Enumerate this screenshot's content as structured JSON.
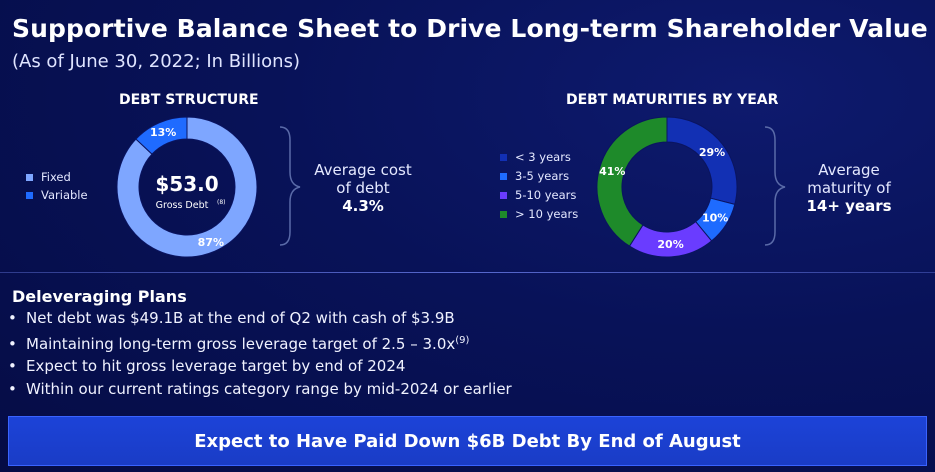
{
  "title": "Supportive Balance Sheet to Drive Long-term Shareholder Value",
  "subtitle": "(As of June 30, 2022; In Billions)",
  "colors": {
    "fixed": "#7ea6ff",
    "variable": "#1f6bff",
    "lt3": "#1230b4",
    "y3_5": "#1e6bff",
    "y5_10": "#6a3cff",
    "gt10": "#1e8a2a",
    "banner": "#1c43d8"
  },
  "debt_structure": {
    "title": "DEBT STRUCTURE",
    "legend": [
      "Fixed",
      "Variable"
    ],
    "center_value": "$53.0",
    "center_label": "Gross Debt",
    "center_footnote": "(8)",
    "slice_labels": [
      "87%",
      "13%"
    ],
    "note_line1": "Average cost",
    "note_line2": "of debt",
    "note_value": "4.3%"
  },
  "maturities": {
    "title": "DEBT MATURITIES BY YEAR",
    "legend": [
      "< 3 years",
      "3-5 years",
      "5-10 years",
      "> 10 years"
    ],
    "slice_labels": [
      "29%",
      "10%",
      "20%",
      "41%"
    ],
    "note_line1": "Average",
    "note_line2": "maturity of",
    "note_value": "14+ years"
  },
  "chart_data": [
    {
      "type": "pie",
      "title": "DEBT STRUCTURE",
      "categories": [
        "Fixed",
        "Variable"
      ],
      "values": [
        87,
        13
      ],
      "colors": [
        "#7ea6ff",
        "#1f6bff"
      ]
    },
    {
      "type": "pie",
      "title": "DEBT MATURITIES BY YEAR",
      "categories": [
        "< 3 years",
        "3-5 years",
        "5-10 years",
        "> 10 years"
      ],
      "values": [
        29,
        10,
        20,
        41
      ],
      "colors": [
        "#1230b4",
        "#1e6bff",
        "#6a3cff",
        "#1e8a2a"
      ]
    }
  ],
  "plans": {
    "title": "Deleveraging Plans",
    "bullets": [
      "Net debt was $49.1B at the end of Q2 with cash of $3.9B",
      "Maintaining long-term gross leverage target of 2.5 – 3.0x",
      "Expect to hit gross leverage target by end of 2024",
      "Within our current ratings category range by mid-2024 or earlier"
    ],
    "bullet2_footnote": "(9)"
  },
  "banner": "Expect to Have Paid Down $6B Debt By End of August"
}
